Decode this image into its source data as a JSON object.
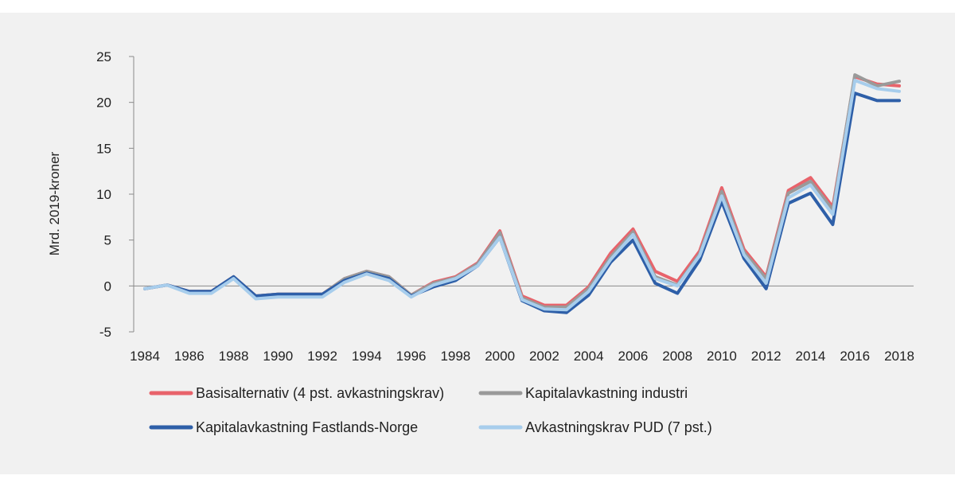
{
  "chart_data": {
    "type": "line",
    "title": "",
    "xlabel": "",
    "ylabel": "Mrd. 2019-kroner",
    "ylim": [
      -5,
      25
    ],
    "yticks": [
      "-5",
      "0",
      "5",
      "10",
      "15",
      "20",
      "25"
    ],
    "xlim": [
      1984,
      2018
    ],
    "xticks": [
      "1984",
      "1986",
      "1988",
      "1990",
      "1992",
      "1994",
      "1996",
      "1998",
      "2000",
      "2002",
      "2004",
      "2006",
      "2008",
      "2010",
      "2012",
      "2014",
      "2016",
      "2018"
    ],
    "x": [
      1984,
      1985,
      1986,
      1987,
      1988,
      1989,
      1990,
      1991,
      1992,
      1993,
      1994,
      1995,
      1996,
      1997,
      1998,
      1999,
      2000,
      2001,
      2002,
      2003,
      2004,
      2005,
      2006,
      2007,
      2008,
      2009,
      2010,
      2011,
      2012,
      2013,
      2014,
      2015,
      2016,
      2017,
      2018
    ],
    "legend_position": "bottom",
    "grid": false,
    "series": [
      {
        "name": "Basisalternativ (4 pst. avkastningskrav)",
        "color": "#e8636b",
        "values": [
          -0.3,
          0.1,
          -0.6,
          -0.6,
          1.0,
          -1.1,
          -0.9,
          -0.9,
          -0.9,
          0.8,
          1.6,
          1.0,
          -1.0,
          0.4,
          1.0,
          2.5,
          6.0,
          -1.1,
          -2.1,
          -2.1,
          -0.1,
          3.6,
          6.2,
          1.6,
          0.5,
          3.8,
          10.7,
          4.0,
          1.0,
          10.4,
          11.8,
          8.6,
          22.8,
          22.0,
          21.8
        ]
      },
      {
        "name": "Kapitalavkastning industri",
        "color": "#9a9a9a",
        "values": [
          -0.3,
          0.1,
          -0.6,
          -0.6,
          1.0,
          -1.1,
          -0.9,
          -0.9,
          -0.9,
          0.8,
          1.6,
          1.0,
          -1.0,
          0.3,
          0.9,
          2.4,
          5.8,
          -1.3,
          -2.3,
          -2.3,
          -0.3,
          3.2,
          5.9,
          1.0,
          0.1,
          3.5,
          10.3,
          3.7,
          0.8,
          10.1,
          11.4,
          8.3,
          23.0,
          21.8,
          22.3
        ]
      },
      {
        "name": "Kapitalavkastning Fastlands-Norge",
        "color": "#2e5fa8",
        "values": [
          -0.3,
          0.1,
          -0.6,
          -0.6,
          1.0,
          -1.1,
          -0.9,
          -0.9,
          -0.9,
          0.6,
          1.4,
          0.8,
          -1.1,
          -0.1,
          0.6,
          2.2,
          5.3,
          -1.6,
          -2.7,
          -2.9,
          -1.0,
          2.6,
          5.0,
          0.3,
          -0.8,
          2.8,
          9.2,
          3.0,
          -0.3,
          9.0,
          10.1,
          6.7,
          21.0,
          20.2,
          20.2
        ]
      },
      {
        "name": "Avkastningskrav PUD (7 pst.)",
        "color": "#a7cdec",
        "values": [
          -0.3,
          0.1,
          -0.8,
          -0.8,
          0.8,
          -1.4,
          -1.2,
          -1.2,
          -1.2,
          0.4,
          1.3,
          0.6,
          -1.2,
          0.1,
          0.8,
          2.2,
          5.3,
          -1.5,
          -2.5,
          -2.6,
          -0.6,
          2.9,
          5.6,
          0.8,
          0.0,
          3.3,
          9.8,
          3.4,
          0.3,
          9.6,
          11.0,
          7.8,
          22.4,
          21.5,
          21.2
        ]
      }
    ]
  }
}
